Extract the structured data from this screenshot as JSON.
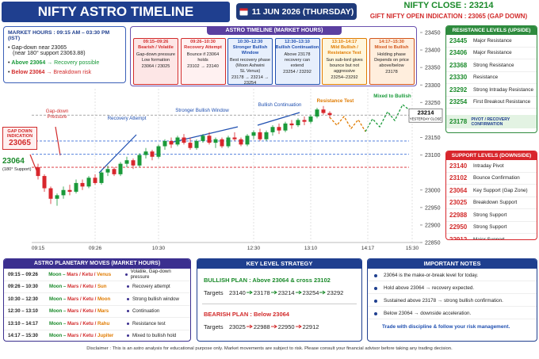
{
  "header": {
    "title": "NIFTY ASTRO TIMELINE FORECAST",
    "date": "11 JUN 2026 (THURSDAY)",
    "close": "NIFTY CLOSE : 23214",
    "gift": "GIFT NIFTY OPEN INDICATION : 23065 (GAP DOWN)"
  },
  "market_hours": {
    "title": "MARKET HOURS : 09:15 AM – 03:30 PM (IST)",
    "gap": "Gap-down near 23065",
    "gap_note": "(near 180° support 23063.88)",
    "above_level": "Above 23064",
    "above_text": "→ Recovery possible",
    "below_level": "Below 23064",
    "below_text": "→ Breakdown risk"
  },
  "timeline": {
    "title": "ASTRO TIMELINE (MARKET HOURS)",
    "columns": [
      {
        "time": "09:15–09:26",
        "heading": "Bearish / Volatile",
        "lines": [
          "Gap-down pressure",
          "Low formation",
          "23064 / 23025"
        ],
        "color": "#d22b2b",
        "bg": "#fde6e6"
      },
      {
        "time": "09:26–10:30",
        "heading": "Recovery Attempt",
        "lines": [
          "Bounce if 23064",
          "holds",
          "23102 → 23140"
        ],
        "color": "#d22b2b",
        "bg": "#fff1f1"
      },
      {
        "time": "10:30–12:30",
        "heading": "Stronger Bullish Window",
        "lines": [
          "Best recovery phase",
          "(Moon Ashwini",
          "SL Venus)",
          "23178 → 23214 → 23254"
        ],
        "color": "#1f4fb0",
        "bg": "#e7effc"
      },
      {
        "time": "12:30–13:10",
        "heading": "Bullish Continuation",
        "lines": [
          "Above 23178",
          "recovery can",
          "extend",
          "23254 / 23292"
        ],
        "color": "#1f4fb0",
        "bg": "#e7effc"
      },
      {
        "time": "13:10–14:17",
        "heading": "Mild Bullish / Resistance Test",
        "lines": [
          "Sun sub-lord gives",
          "bounce but not",
          "aggressive",
          "23254–23292"
        ],
        "color": "#e07b00",
        "bg": "#fff6dd"
      },
      {
        "time": "14:17–15:30",
        "heading": "Mixed to Bullish",
        "lines": [
          "Holding phase",
          "Depends on price",
          "above/below",
          "23178"
        ],
        "color": "#d2551b",
        "bg": "#ffeedd"
      }
    ]
  },
  "resistance": {
    "title": "RESISTANCE LEVELS (UPSIDE)",
    "rows": [
      [
        "23445",
        "Major Resistance"
      ],
      [
        "23406",
        "Major Resistance"
      ],
      [
        "23368",
        "Strong Resistance"
      ],
      [
        "23330",
        "Resistance"
      ],
      [
        "23292",
        "Strong Intraday Resistance"
      ],
      [
        "23254",
        "First Breakout Resistance"
      ]
    ],
    "pivot_level": "23178",
    "pivot_label": "PIVOT / RECOVERY CONFIRMATION"
  },
  "support": {
    "title": "SUPPORT LEVELS (DOWNSIDE)",
    "rows": [
      [
        "23140",
        "Intraday Pivot"
      ],
      [
        "23102",
        "Bounce Confirmation"
      ],
      [
        "23064",
        "Key Support (Gap Zone)"
      ],
      [
        "23025",
        "Breakdown Support"
      ],
      [
        "22988",
        "Strong Support"
      ],
      [
        "22950",
        "Strong Support"
      ],
      [
        "22912",
        "Major Support"
      ]
    ]
  },
  "chart_data": {
    "type": "candlestick",
    "up_color": "#1a9a3a",
    "down_color": "#d8262c",
    "categories": [
      "09:15",
      null,
      null,
      null,
      null,
      null,
      null,
      null,
      null,
      "09:26",
      null,
      null,
      null,
      null,
      null,
      null,
      null,
      null,
      null,
      "10:30",
      null,
      null,
      null,
      null,
      null,
      null,
      null,
      null,
      null,
      null,
      null,
      null,
      null,
      null,
      "12:30",
      null,
      null,
      null,
      null,
      null,
      null,
      null,
      null,
      "13:10",
      null,
      null,
      null,
      null,
      null,
      null,
      null,
      null,
      "14:17",
      null,
      null,
      null,
      null,
      null,
      null,
      "15:30"
    ],
    "open": [
      23065,
      23040,
      23005,
      22975,
      22985,
      23000,
      22995,
      23020,
      23010,
      23035,
      23020,
      23050,
      23060,
      23045,
      23075,
      23085,
      23070,
      23100,
      23110,
      23095,
      23125,
      23140,
      23130,
      23150,
      23135,
      23120,
      23140,
      23155,
      23135,
      23145,
      23125,
      23150,
      23145,
      23130,
      23155,
      23165,
      23145,
      23165,
      23180,
      23170,
      23190,
      23185,
      23200,
      23195,
      23210,
      23230,
      23220,
      null,
      null,
      null,
      null,
      null,
      null,
      null,
      null,
      null,
      null,
      null,
      null,
      null
    ],
    "high": [
      23075,
      23045,
      23010,
      22990,
      23010,
      23015,
      23030,
      23030,
      23040,
      23045,
      23055,
      23070,
      23065,
      23080,
      23095,
      23090,
      23105,
      23120,
      23115,
      23130,
      23145,
      23150,
      23155,
      23160,
      23150,
      23145,
      23160,
      23165,
      23150,
      23150,
      23155,
      23165,
      23150,
      23160,
      23170,
      23175,
      23170,
      23185,
      23190,
      23195,
      23200,
      23205,
      23210,
      23215,
      23235,
      23240,
      23225,
      null,
      null,
      null,
      null,
      null,
      null,
      null,
      null,
      null,
      null,
      null,
      null,
      null
    ],
    "low": [
      23030,
      22995,
      22960,
      22955,
      22975,
      22985,
      22990,
      23000,
      23005,
      23015,
      23015,
      23040,
      23040,
      23040,
      23065,
      23060,
      23065,
      23090,
      23085,
      23090,
      23115,
      23120,
      23125,
      23130,
      23115,
      23115,
      23135,
      23130,
      23120,
      23120,
      23120,
      23140,
      23125,
      23125,
      23145,
      23140,
      23140,
      23155,
      23160,
      23165,
      23175,
      23180,
      23185,
      23190,
      23205,
      23215,
      23205,
      null,
      null,
      null,
      null,
      null,
      null,
      null,
      null,
      null,
      null,
      null,
      null,
      null
    ],
    "close": [
      23040,
      23005,
      22975,
      22985,
      23000,
      22995,
      23020,
      23010,
      23035,
      23020,
      23050,
      23060,
      23045,
      23075,
      23085,
      23070,
      23100,
      23110,
      23095,
      23125,
      23140,
      23130,
      23150,
      23135,
      23120,
      23140,
      23155,
      23135,
      23145,
      23125,
      23150,
      23145,
      23130,
      23155,
      23165,
      23145,
      23165,
      23180,
      23170,
      23190,
      23185,
      23200,
      23195,
      23210,
      23230,
      23220,
      23214,
      null,
      null,
      null,
      null,
      null,
      null,
      null,
      null,
      null,
      null,
      null,
      null,
      null
    ],
    "ylim": [
      22850,
      23450
    ],
    "yticks": [
      22850,
      22900,
      22950,
      23000,
      23100,
      23150,
      23200,
      23250,
      23300,
      23350,
      23400,
      23450
    ],
    "hlines": [
      {
        "value": 23214,
        "color": "#8a8a8a"
      },
      {
        "value": 23140,
        "color": "#3b6fd8"
      },
      {
        "value": 23102,
        "color": "#3b6fd8"
      },
      {
        "value": 23065,
        "color": "#d8262c"
      }
    ],
    "close_label": "23214",
    "close_note": "YESTERDAY CLOSE",
    "gap_box": "GAP DOWN INDICATION",
    "gap_value": "23065",
    "support_value": "23064",
    "support_note": "(180° Support)",
    "annotations": [
      {
        "text": "Gap-down Pressure",
        "color": "#d22b2b"
      },
      {
        "text": "Recovery Attempt",
        "color": "#1f4fb0"
      },
      {
        "text": "Stronger Bullish Window",
        "color": "#1f4fb0"
      },
      {
        "text": "Bullish Continuation",
        "color": "#1f4fb0"
      },
      {
        "text": "Resistance Test",
        "color": "#e07b00"
      },
      {
        "text": "Mixed to Bullish",
        "color": "#1a9a3a"
      }
    ]
  },
  "planetary": {
    "title": "ASTRO PLANETARY MOVES (MARKET HOURS)",
    "rows": [
      {
        "time": "09:15 – 09:26",
        "moon": "Moon –",
        "mk": "Mars / Ketu /",
        "sub": "Venus",
        "effect": "Volatile, Gap-down pressure"
      },
      {
        "time": "09:26 – 10:30",
        "moon": "Moon –",
        "mk": "Mars / Ketu /",
        "sub": "Sun",
        "effect": "Recovery attempt"
      },
      {
        "time": "10:30 – 12:30",
        "moon": "Moon –",
        "mk": "Mars / Ketu /",
        "sub": "Moon",
        "effect": "Strong bullish window"
      },
      {
        "time": "12:30 – 13:10",
        "moon": "Moon –",
        "mk": "Mars / Ketu /",
        "sub": "Mars",
        "effect": "Continuation"
      },
      {
        "time": "13:10 – 14:17",
        "moon": "Moon –",
        "mk": "Mars / Ketu /",
        "sub": "Rahu",
        "effect": "Resistance test"
      },
      {
        "time": "14:17 – 15:30",
        "moon": "Moon –",
        "mk": "Mars / Ketu /",
        "sub": "Jupiter",
        "effect": "Mixed to bullish hold"
      }
    ]
  },
  "strategy": {
    "title": "KEY LEVEL STRATEGY",
    "bull_heading": "BULLISH PLAN :",
    "bull_condition": "Above 23064 & cross 23102",
    "targets_label": "Targets",
    "bull_targets": [
      23140,
      23178,
      23214,
      23254,
      23292
    ],
    "bear_heading": "BEARISH PLAN :",
    "bear_condition": "Below 23064",
    "bear_targets": [
      23025,
      22988,
      22950,
      22912
    ]
  },
  "notes": {
    "title": "IMPORTANT NOTES",
    "items": [
      "23064 is the make-or-break level for today.",
      "Hold above 23064 → recovery expected.",
      "Sustained above 23178 → strong bullish confirmation.",
      "Below 23064 → downside acceleration."
    ],
    "footer": "Trade with discipline & follow your risk management."
  },
  "disclaimer": "Disclaimer : This is an astro analysis for educational purpose only. Market movements are subject to risk. Please consult your financial advisor before taking any trading decision."
}
